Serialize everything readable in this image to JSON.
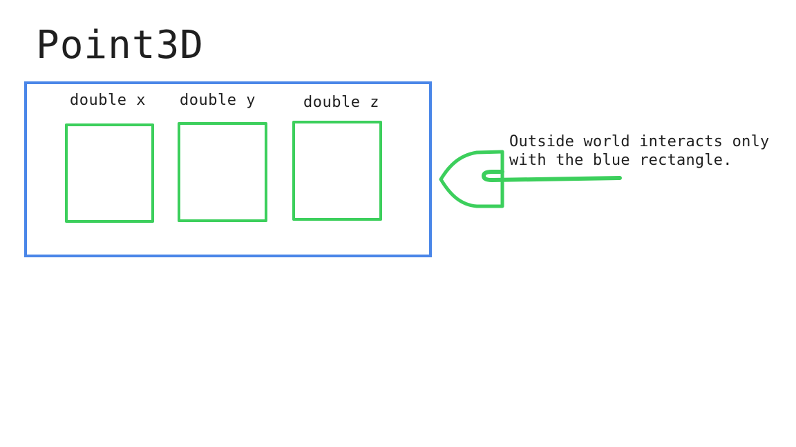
{
  "diagram": {
    "title": "Point3D",
    "fields": [
      {
        "label": "double x"
      },
      {
        "label": "double y"
      },
      {
        "label": "double z"
      }
    ],
    "annotation": {
      "line1": "Outside world interacts only",
      "line2": "with the blue rectangle."
    },
    "colors": {
      "container": "#4a86e8",
      "field": "#3ccf5c",
      "connector": "#3ccf5c",
      "text": "#1f1f1f"
    },
    "connector_icon": "plug-connector-icon"
  }
}
